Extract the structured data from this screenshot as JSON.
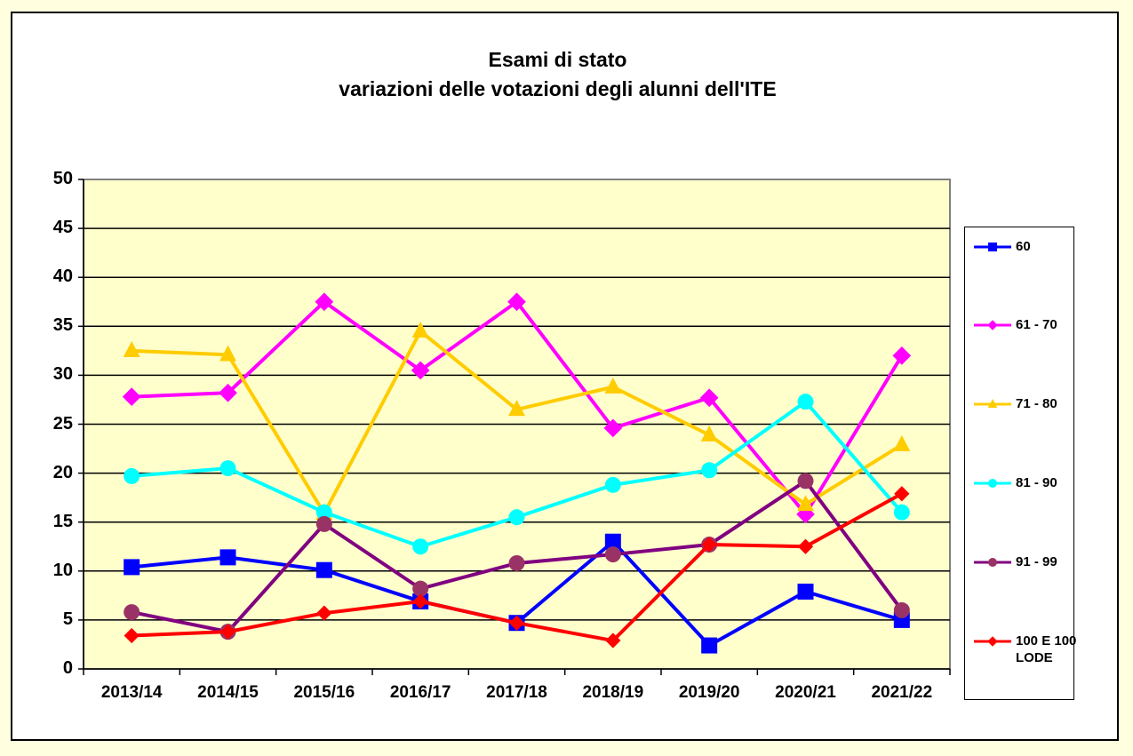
{
  "chart_data": {
    "type": "line",
    "title": "Esami di stato",
    "subtitle": "variazioni delle votazioni degli alunni dell'ITE",
    "xlabel": "",
    "ylabel": "",
    "ylim": [
      0,
      50
    ],
    "yticks": [
      0,
      5,
      10,
      15,
      20,
      25,
      30,
      35,
      40,
      45,
      50
    ],
    "grid": true,
    "legend_position": "right",
    "plot_background": "#FFFFCC",
    "categories": [
      "2013/14",
      "2014/15",
      "2015/16",
      "2016/17",
      "2017/18",
      "2018/19",
      "2019/20",
      "2020/21",
      "2021/22"
    ],
    "series": [
      {
        "name": "60",
        "color": "#0000FF",
        "marker": "square",
        "values": [
          10.4,
          11.4,
          10.1,
          6.9,
          4.7,
          13.0,
          2.4,
          7.9,
          5.0
        ]
      },
      {
        "name": "61 - 70",
        "color": "#FF00FF",
        "marker": "diamond",
        "values": [
          27.8,
          28.2,
          37.5,
          30.5,
          37.5,
          24.6,
          27.7,
          15.8,
          32.0
        ]
      },
      {
        "name": "71 - 80",
        "color": "#FFCC00",
        "marker": "triangle",
        "values": [
          32.5,
          32.1,
          15.9,
          34.5,
          26.5,
          28.8,
          23.9,
          16.8,
          22.9
        ]
      },
      {
        "name": "81 - 90",
        "color": "#00FFFF",
        "marker": "circle",
        "values": [
          19.7,
          20.5,
          16.0,
          12.5,
          15.5,
          18.8,
          20.3,
          27.3,
          16.0
        ]
      },
      {
        "name": "91 - 99",
        "color": "#800080",
        "markerColor": "#993366",
        "marker": "circle",
        "values": [
          5.8,
          3.8,
          14.8,
          8.2,
          10.8,
          11.7,
          12.7,
          19.2,
          6.0
        ]
      },
      {
        "name": "100 E 100 LODE",
        "color": "#FF0000",
        "marker": "diamond",
        "values": [
          3.4,
          3.8,
          5.7,
          6.9,
          4.7,
          2.9,
          12.7,
          12.5,
          17.9
        ]
      }
    ]
  },
  "legend": {
    "items": [
      "60",
      "61 - 70",
      "71 - 80",
      "81 - 90",
      "91 - 99",
      "100 E 100 LODE"
    ]
  }
}
